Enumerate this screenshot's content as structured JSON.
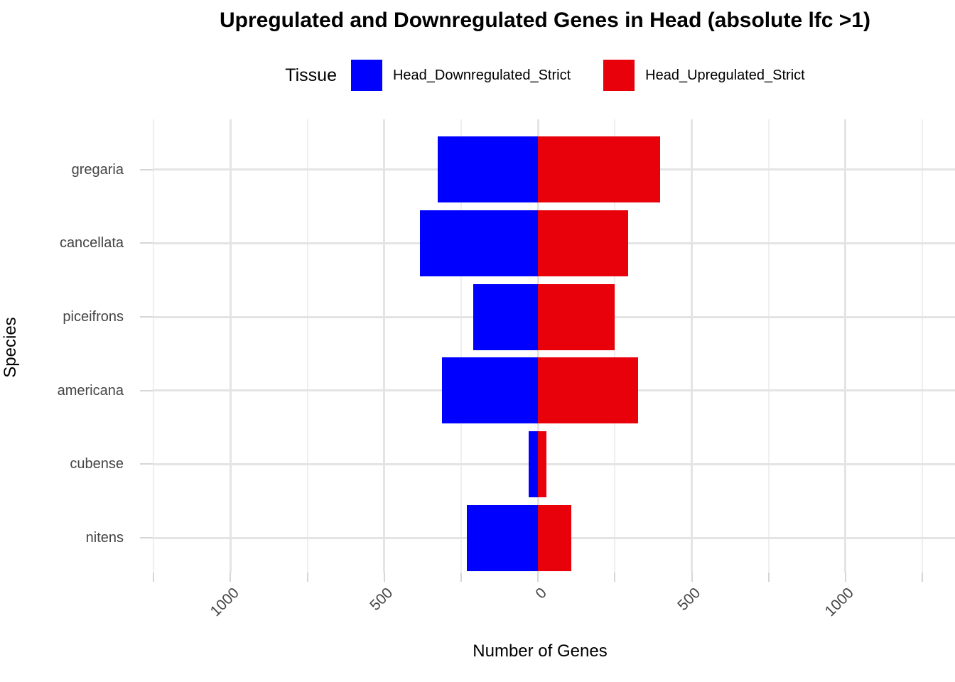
{
  "title": "Upregulated and Downregulated Genes in Head (absolute lfc >1)",
  "legend": {
    "title": "Tissue",
    "items": [
      {
        "label": "Head_Downregulated_Strict",
        "color": "#0000FF"
      },
      {
        "label": "Head_Upregulated_Strict",
        "color": "#E8000B"
      }
    ]
  },
  "axes": {
    "x_title": "Number of Genes",
    "y_title": "Species"
  },
  "style": {
    "grid_major_color": "#E4E4E4",
    "grid_minor_color": "#EFEFEF",
    "tick_color": "#D6D6D6",
    "tick_label_color": "#444444"
  },
  "chart_data": {
    "type": "bar",
    "orientation": "horizontal-diverging",
    "title": "Upregulated and Downregulated Genes in Head (absolute lfc >1)",
    "xlabel": "Number of Genes",
    "ylabel": "Species",
    "grid": true,
    "legend_position": "top",
    "categories": [
      "gregaria",
      "cancellata",
      "piceifrons",
      "americana",
      "cubense",
      "nitens"
    ],
    "series": [
      {
        "name": "Head_Downregulated_Strict",
        "color": "#0000FF",
        "direction": "negative",
        "values": [
          327,
          385,
          210,
          312,
          31,
          232
        ]
      },
      {
        "name": "Head_Upregulated_Strict",
        "color": "#E8000B",
        "direction": "positive",
        "values": [
          397,
          294,
          249,
          325,
          27,
          109
        ]
      }
    ],
    "xlim": [
      -1253,
      1356
    ],
    "x_major_ticks": [
      {
        "value": -1000,
        "label": "1000"
      },
      {
        "value": -500,
        "label": "500"
      },
      {
        "value": 0,
        "label": "0"
      },
      {
        "value": 500,
        "label": "500"
      },
      {
        "value": 1000,
        "label": "1000"
      }
    ],
    "x_minor_step": 250
  }
}
